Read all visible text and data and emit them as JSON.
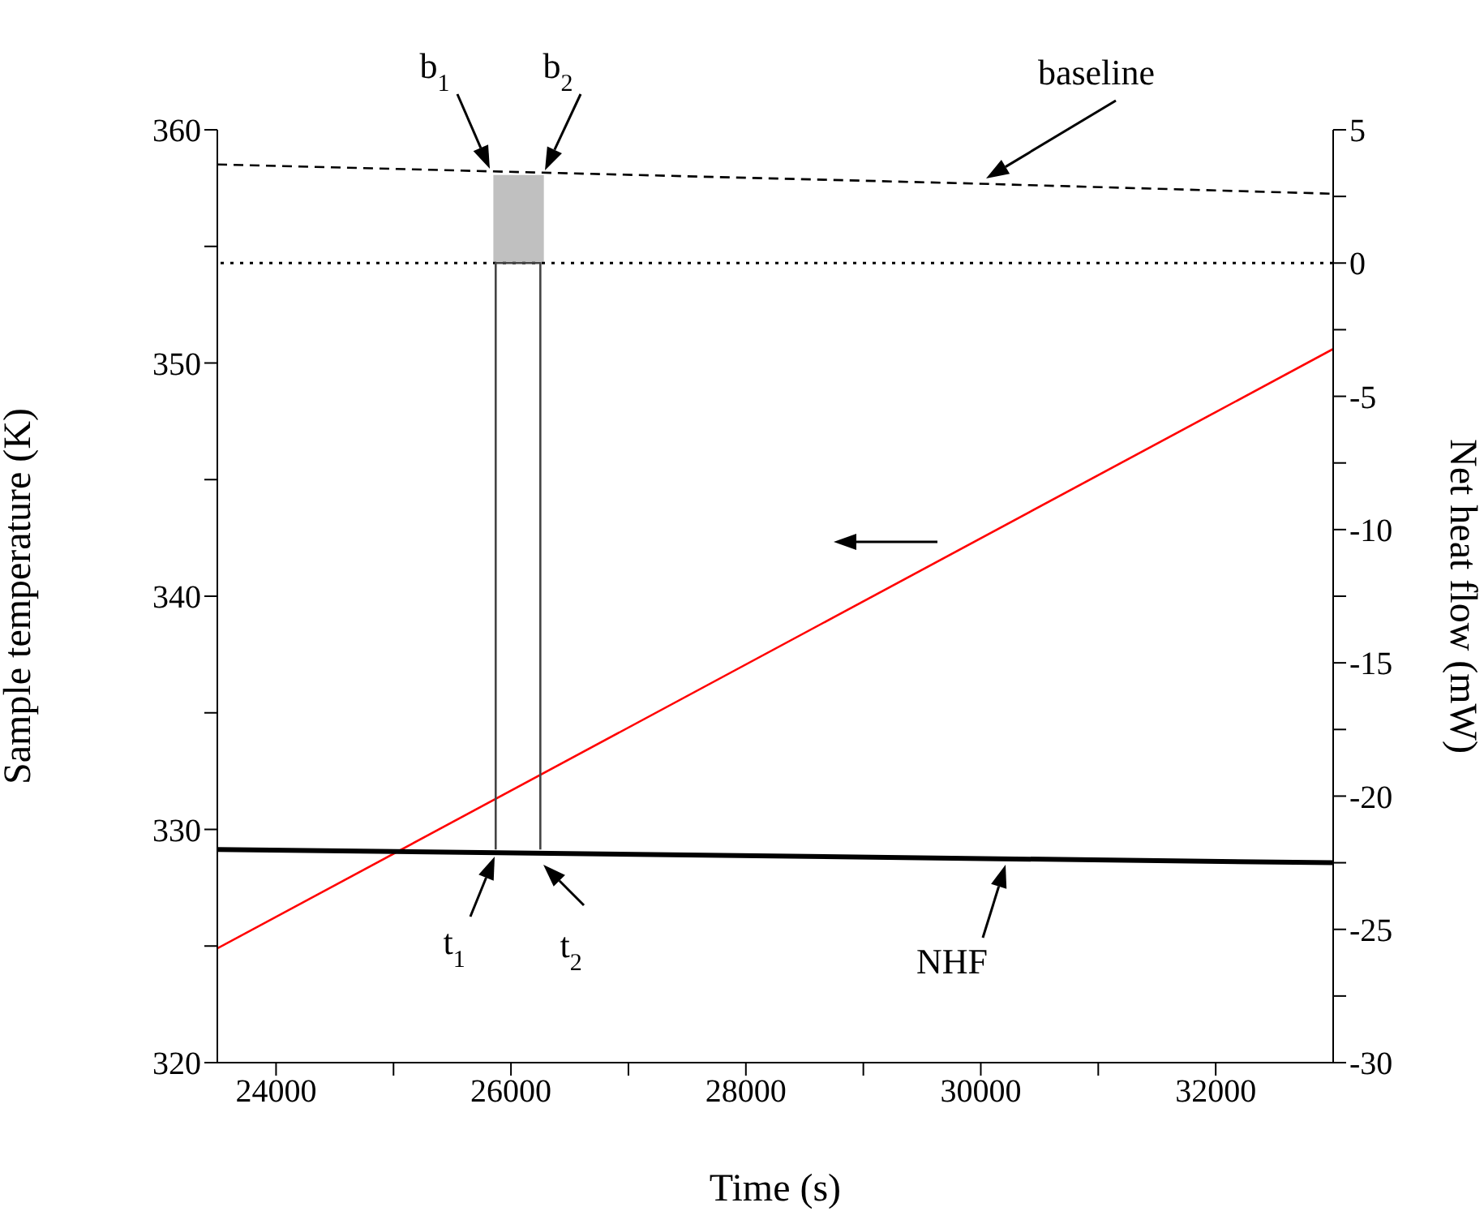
{
  "chart_data": {
    "type": "line",
    "xlabel": "Time (s)",
    "ylabel": "Sample temperature (K)",
    "y2label": "Net heat flow (mW)",
    "xlim": [
      23500,
      33000
    ],
    "xticks": [
      24000,
      {
        "value": 25000,
        "label": null
      },
      26000,
      {
        "value": 27000,
        "label": null
      },
      28000,
      {
        "value": 29000,
        "label": null
      },
      30000,
      {
        "value": 31000,
        "label": null
      },
      32000
    ],
    "ylim": [
      320,
      360
    ],
    "yticks": [
      320,
      {
        "value": 325,
        "label": null
      },
      330,
      {
        "value": 335,
        "label": null
      },
      340,
      {
        "value": 345,
        "label": null
      },
      350,
      {
        "value": 355,
        "label": null
      },
      360
    ],
    "y2lim": [
      -30,
      5
    ],
    "y2ticks": [
      -30,
      {
        "value": -27.5,
        "label": null
      },
      -25,
      {
        "value": -22.5,
        "label": null
      },
      -20,
      {
        "value": -17.5,
        "label": null
      },
      -15,
      {
        "value": -12.5,
        "label": null
      },
      -10,
      {
        "value": -7.5,
        "label": null
      },
      -5,
      {
        "value": -2.5,
        "label": null
      },
      0,
      {
        "value": 2.5,
        "label": null
      },
      5
    ],
    "series": [
      {
        "color": "#ff0000",
        "x": [
          23500,
          33000
        ],
        "values": [
          324.9,
          350.6
        ]
      },
      {
        "color": "#000000",
        "axis": "y2",
        "x": [
          23500,
          33000
        ],
        "values": [
          -22.0,
          -22.5
        ]
      },
      {
        "color": "#000000",
        "axis": "y2",
        "line_style": "dashed",
        "x": [
          23500,
          29800,
          33000
        ],
        "values": [
          3.7,
          3.0,
          2.6
        ]
      },
      {
        "type": "area",
        "color": "#c0c0c0",
        "axis": "y2",
        "x": [
          25850,
          26280
        ],
        "values": [
          3.3,
          3.3
        ]
      },
      {
        "color": "#444444",
        "axis": "y2",
        "x": [
          25870,
          25870,
          26250,
          26250
        ],
        "values": [
          -22.0,
          0,
          0,
          -22.0
        ]
      }
    ],
    "ref_lines": [
      {
        "axis": "y2",
        "value": 0,
        "line_style": "dotted",
        "color": "#000000"
      }
    ],
    "annotations": [
      "b$_{1}$",
      "b$_{2}$",
      "baseline",
      "t$_{1}$",
      "t$_{2}$",
      "NHF"
    ],
    "grid": false,
    "legend": false
  }
}
